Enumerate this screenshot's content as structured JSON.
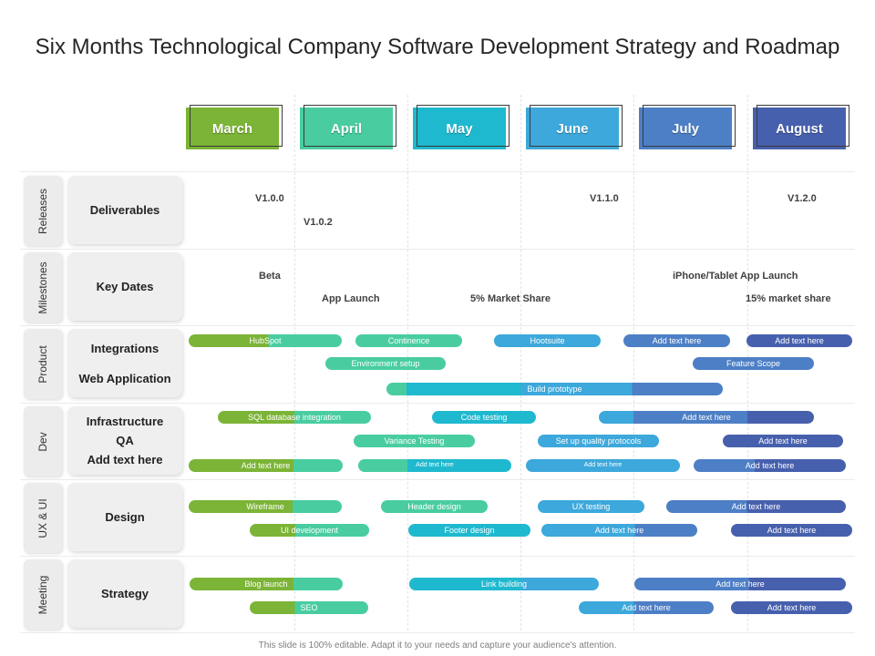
{
  "title": "Six Months Technological Company Software Development Strategy and Roadmap",
  "months": [
    {
      "label": "March",
      "color": "#7cb437"
    },
    {
      "label": "April",
      "color": "#49cda0"
    },
    {
      "label": "May",
      "color": "#1fb9cf"
    },
    {
      "label": "June",
      "color": "#3da8db"
    },
    {
      "label": "July",
      "color": "#4d7fc6"
    },
    {
      "label": "August",
      "color": "#4760ad"
    }
  ],
  "rows": [
    {
      "section": "Releases",
      "categories": [
        "Deliverables"
      ]
    },
    {
      "section": "Milestones",
      "categories": [
        "Key Dates"
      ]
    },
    {
      "section": "Product",
      "categories": [
        "Integrations",
        "Web Application"
      ]
    },
    {
      "section": "Dev",
      "categories": [
        "Infrastructure",
        "QA",
        "Add text here"
      ]
    },
    {
      "section": "UX & UI",
      "categories": [
        "Design"
      ]
    },
    {
      "section": "Meeting",
      "categories": [
        "Strategy"
      ]
    }
  ],
  "releases": [
    "V1.0.0",
    "V1.0.2",
    "V1.1.0",
    "V1.2.0"
  ],
  "key_dates": [
    "Beta",
    "App Launch",
    "5% Market Share",
    "iPhone/Tablet App Launch",
    "15% market share"
  ],
  "bars": [
    "HubSpot",
    "Continence",
    "Hootsuite",
    "Add text here",
    "Add text here",
    "Environment setup",
    "Feature Scope",
    "Build prototype",
    "SQL database integration",
    "Code testing",
    "Add text here",
    "Variance Testing",
    "Set up quality protocols",
    "Add text here",
    "Add text here",
    "Add text here",
    "Add text here",
    "Add text here",
    "Wireframe",
    "Header design",
    "UX testing",
    "Add text here",
    "UI development",
    "Footer design",
    "Add text here",
    "Add text here",
    "Blog launch",
    "Link building",
    "Add text here",
    "SEO",
    "Add text here",
    "Add text here"
  ],
  "footer": "This slide is 100% editable. Adapt it to your needs and capture your audience's attention."
}
